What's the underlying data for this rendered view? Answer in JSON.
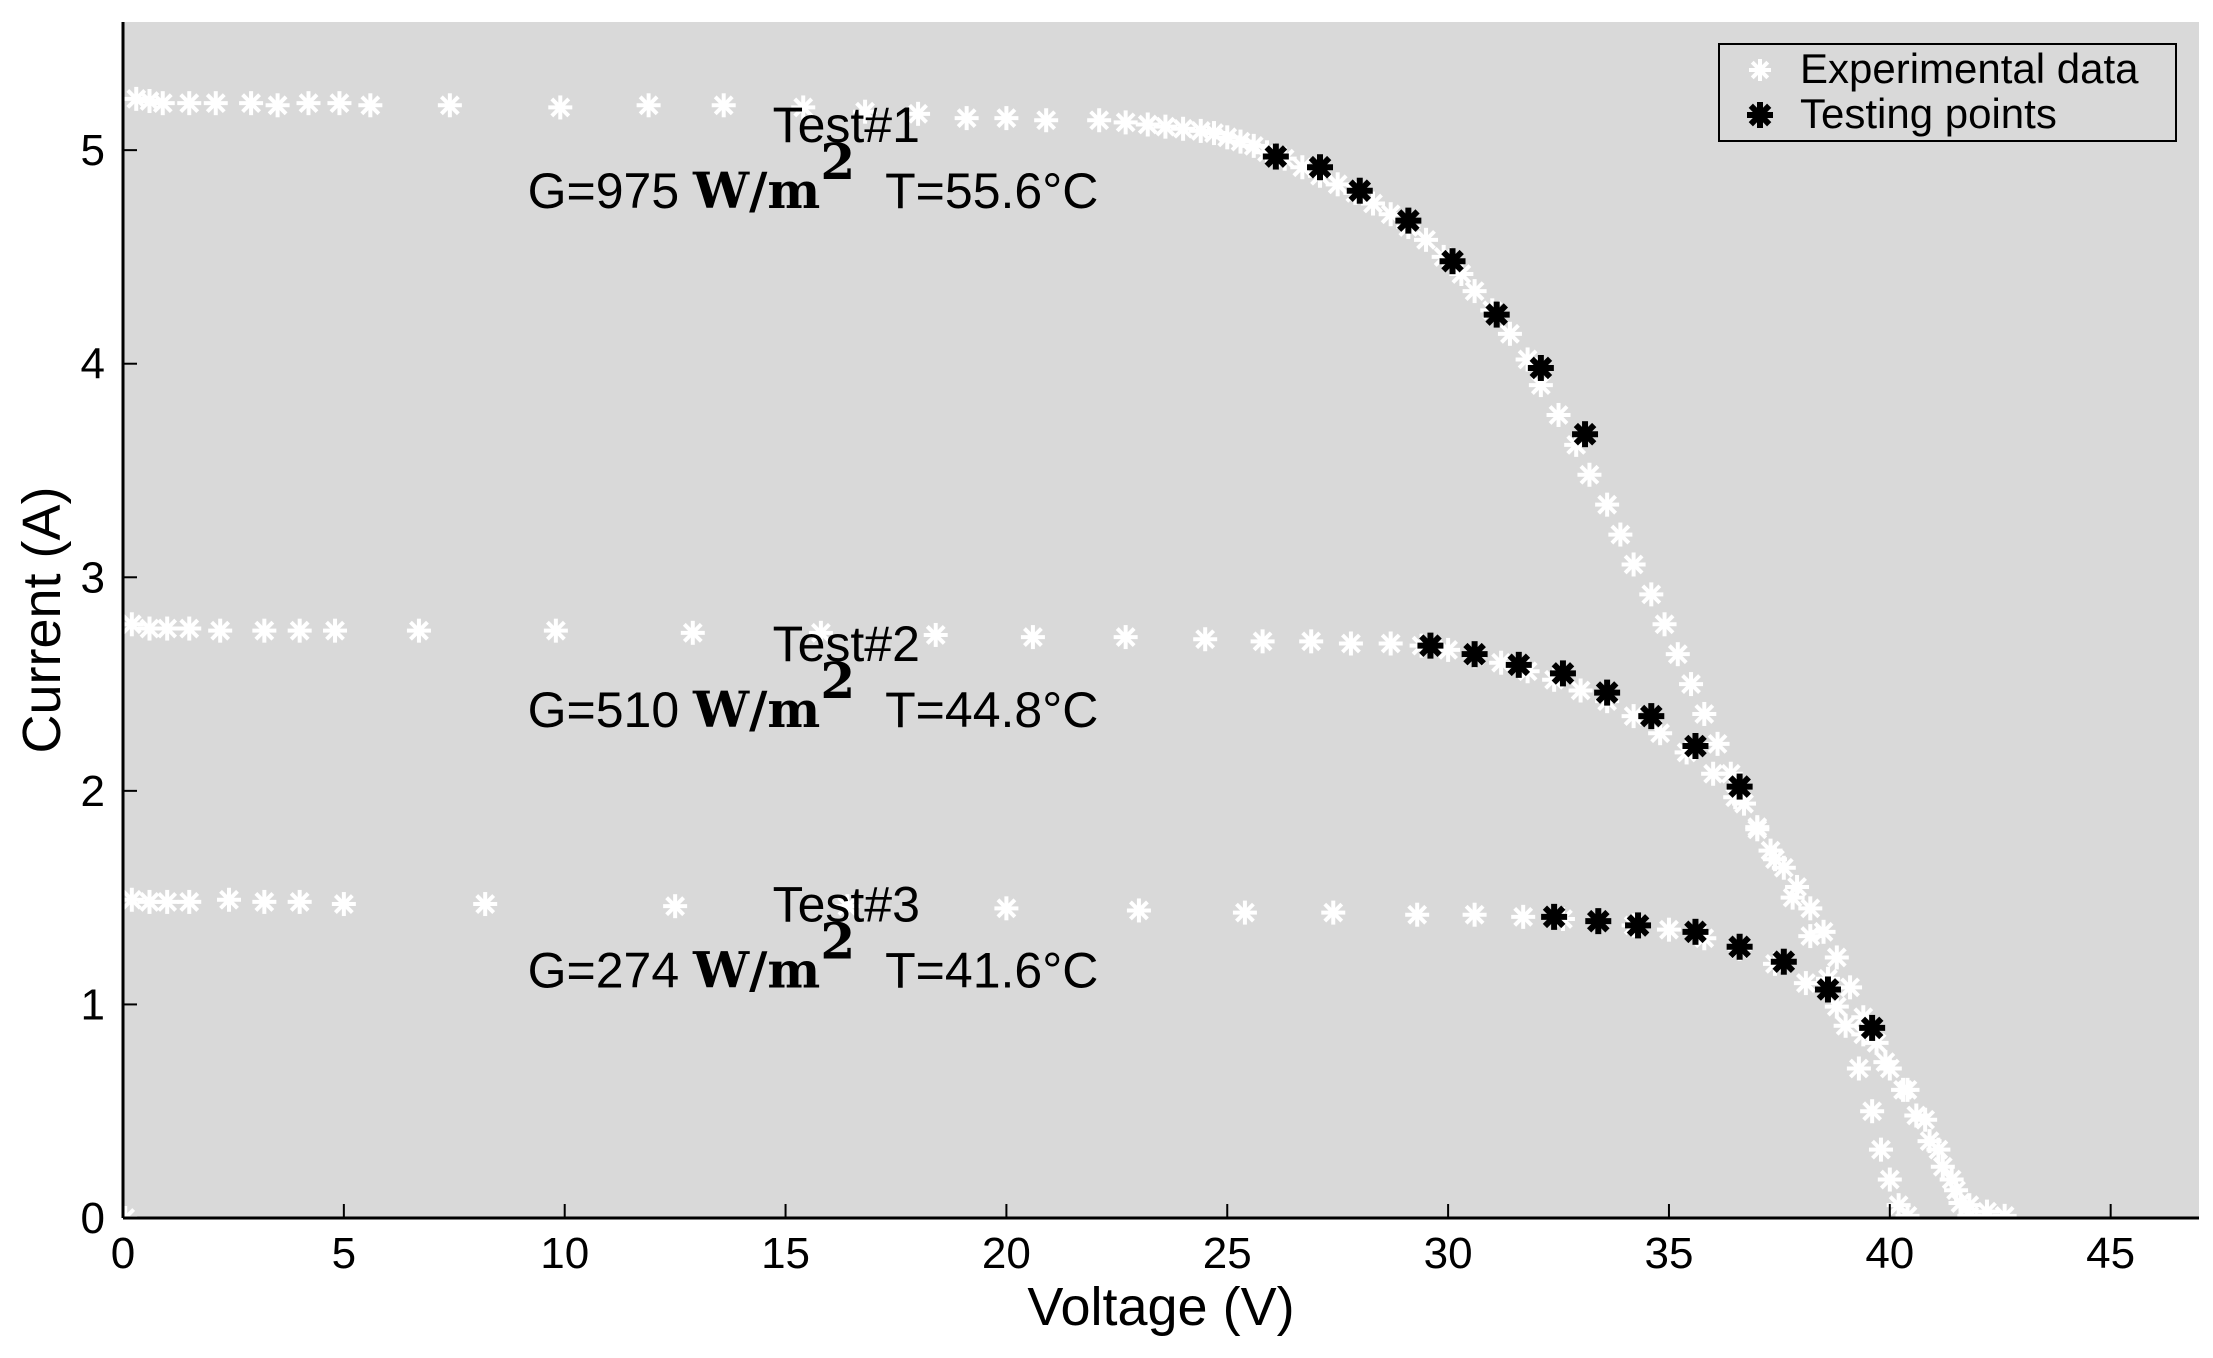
{
  "chart_data": {
    "type": "scatter",
    "title": "",
    "xlabel": "Voltage (V)",
    "ylabel": "Current (A)",
    "xlim": [
      0,
      47
    ],
    "ylim": [
      0,
      5.6
    ],
    "grid": false,
    "legend_position": "top-right",
    "background": "#d9d9d9",
    "xticks": [
      0,
      5,
      10,
      15,
      20,
      25,
      30,
      35,
      40,
      45
    ],
    "yticks": [
      0,
      1,
      2,
      3,
      4,
      5
    ],
    "series": [
      {
        "name": "Experimental data",
        "color": "#ffffff",
        "marker": "asterisk-small",
        "points": [
          [
            0.3,
            5.24
          ],
          [
            0.6,
            5.23
          ],
          [
            0.9,
            5.22
          ],
          [
            1.5,
            5.22
          ],
          [
            2.1,
            5.22
          ],
          [
            2.9,
            5.22
          ],
          [
            3.5,
            5.21
          ],
          [
            4.2,
            5.22
          ],
          [
            4.9,
            5.22
          ],
          [
            5.6,
            5.21
          ],
          [
            7.4,
            5.21
          ],
          [
            9.9,
            5.2
          ],
          [
            11.9,
            5.21
          ],
          [
            13.6,
            5.21
          ],
          [
            15.4,
            5.2
          ],
          [
            16.8,
            5.18
          ],
          [
            18.0,
            5.17
          ],
          [
            19.1,
            5.15
          ],
          [
            20.0,
            5.15
          ],
          [
            20.9,
            5.14
          ],
          [
            22.1,
            5.14
          ],
          [
            22.7,
            5.13
          ],
          [
            23.2,
            5.12
          ],
          [
            23.6,
            5.11
          ],
          [
            24.0,
            5.1
          ],
          [
            24.4,
            5.09
          ],
          [
            24.7,
            5.08
          ],
          [
            25.0,
            5.06
          ],
          [
            25.3,
            5.04
          ],
          [
            25.6,
            5.02
          ],
          [
            25.9,
            4.99
          ],
          [
            26.3,
            4.96
          ],
          [
            26.7,
            4.92
          ],
          [
            27.1,
            4.88
          ],
          [
            27.5,
            4.84
          ],
          [
            27.9,
            4.8
          ],
          [
            28.3,
            4.75
          ],
          [
            28.7,
            4.7
          ],
          [
            29.1,
            4.64
          ],
          [
            29.5,
            4.58
          ],
          [
            29.9,
            4.5
          ],
          [
            30.3,
            4.42
          ],
          [
            30.6,
            4.34
          ],
          [
            31.0,
            4.25
          ],
          [
            31.4,
            4.14
          ],
          [
            31.8,
            4.02
          ],
          [
            32.1,
            3.9
          ],
          [
            32.5,
            3.76
          ],
          [
            32.9,
            3.62
          ],
          [
            33.2,
            3.48
          ],
          [
            33.6,
            3.34
          ],
          [
            33.9,
            3.2
          ],
          [
            34.2,
            3.06
          ],
          [
            34.6,
            2.92
          ],
          [
            34.9,
            2.78
          ],
          [
            35.2,
            2.64
          ],
          [
            35.5,
            2.5
          ],
          [
            35.8,
            2.36
          ],
          [
            36.1,
            2.22
          ],
          [
            36.4,
            2.08
          ],
          [
            36.7,
            1.94
          ],
          [
            37.0,
            1.82
          ],
          [
            37.3,
            1.72
          ],
          [
            37.6,
            1.64
          ],
          [
            37.9,
            1.55
          ],
          [
            38.2,
            1.45
          ],
          [
            38.5,
            1.34
          ],
          [
            38.8,
            1.22
          ],
          [
            39.1,
            1.08
          ],
          [
            39.4,
            0.94
          ],
          [
            39.7,
            0.82
          ],
          [
            40.0,
            0.7
          ],
          [
            40.3,
            0.6
          ],
          [
            40.6,
            0.48
          ],
          [
            40.9,
            0.36
          ],
          [
            41.2,
            0.24
          ],
          [
            41.5,
            0.13
          ],
          [
            41.8,
            0.06
          ],
          [
            42.2,
            0.03
          ],
          [
            42.6,
            0.01
          ],
          [
            0.2,
            2.78
          ],
          [
            0.6,
            2.76
          ],
          [
            1.0,
            2.76
          ],
          [
            1.5,
            2.76
          ],
          [
            2.2,
            2.75
          ],
          [
            3.2,
            2.75
          ],
          [
            4.0,
            2.75
          ],
          [
            4.8,
            2.75
          ],
          [
            6.7,
            2.75
          ],
          [
            9.8,
            2.75
          ],
          [
            12.9,
            2.74
          ],
          [
            15.8,
            2.74
          ],
          [
            18.4,
            2.73
          ],
          [
            20.6,
            2.72
          ],
          [
            22.7,
            2.72
          ],
          [
            24.5,
            2.71
          ],
          [
            25.8,
            2.7
          ],
          [
            26.9,
            2.7
          ],
          [
            27.8,
            2.69
          ],
          [
            28.7,
            2.69
          ],
          [
            29.4,
            2.68
          ],
          [
            30.0,
            2.66
          ],
          [
            30.6,
            2.63
          ],
          [
            31.2,
            2.6
          ],
          [
            31.8,
            2.56
          ],
          [
            32.4,
            2.52
          ],
          [
            33.0,
            2.47
          ],
          [
            33.6,
            2.42
          ],
          [
            34.2,
            2.35
          ],
          [
            34.8,
            2.27
          ],
          [
            35.4,
            2.18
          ],
          [
            36.0,
            2.08
          ],
          [
            36.5,
            1.97
          ],
          [
            37.0,
            1.83
          ],
          [
            37.4,
            1.68
          ],
          [
            37.8,
            1.5
          ],
          [
            38.2,
            1.32
          ],
          [
            38.6,
            1.12
          ],
          [
            39.0,
            0.9
          ],
          [
            39.3,
            0.7
          ],
          [
            39.6,
            0.5
          ],
          [
            39.8,
            0.32
          ],
          [
            40.0,
            0.18
          ],
          [
            40.2,
            0.06
          ],
          [
            40.4,
            0.01
          ],
          [
            0.2,
            1.49
          ],
          [
            0.6,
            1.48
          ],
          [
            1.0,
            1.48
          ],
          [
            1.5,
            1.48
          ],
          [
            2.4,
            1.49
          ],
          [
            3.2,
            1.48
          ],
          [
            4.0,
            1.48
          ],
          [
            5.0,
            1.47
          ],
          [
            8.2,
            1.47
          ],
          [
            12.5,
            1.46
          ],
          [
            16.4,
            1.46
          ],
          [
            20.0,
            1.45
          ],
          [
            23.0,
            1.44
          ],
          [
            25.4,
            1.43
          ],
          [
            27.4,
            1.43
          ],
          [
            29.3,
            1.42
          ],
          [
            30.6,
            1.42
          ],
          [
            31.7,
            1.41
          ],
          [
            32.6,
            1.4
          ],
          [
            33.4,
            1.39
          ],
          [
            34.2,
            1.37
          ],
          [
            35.0,
            1.35
          ],
          [
            35.8,
            1.31
          ],
          [
            36.6,
            1.26
          ],
          [
            37.4,
            1.19
          ],
          [
            38.1,
            1.1
          ],
          [
            38.8,
            0.99
          ],
          [
            39.4,
            0.86
          ],
          [
            39.9,
            0.73
          ],
          [
            40.4,
            0.6
          ],
          [
            40.8,
            0.46
          ],
          [
            41.1,
            0.32
          ],
          [
            41.4,
            0.18
          ],
          [
            41.6,
            0.07
          ],
          [
            41.8,
            0.01
          ],
          [
            0.05,
            0.0
          ]
        ]
      },
      {
        "name": "Testing points",
        "color": "#000000",
        "marker": "asterisk-bold",
        "points": [
          [
            26.1,
            4.97
          ],
          [
            27.1,
            4.92
          ],
          [
            28.0,
            4.81
          ],
          [
            29.1,
            4.67
          ],
          [
            30.1,
            4.48
          ],
          [
            31.1,
            4.23
          ],
          [
            32.1,
            3.98
          ],
          [
            33.1,
            3.67
          ],
          [
            29.6,
            2.68
          ],
          [
            30.6,
            2.64
          ],
          [
            31.6,
            2.59
          ],
          [
            32.6,
            2.55
          ],
          [
            33.6,
            2.46
          ],
          [
            34.6,
            2.35
          ],
          [
            35.6,
            2.21
          ],
          [
            36.6,
            2.02
          ],
          [
            32.4,
            1.41
          ],
          [
            33.4,
            1.39
          ],
          [
            34.3,
            1.37
          ],
          [
            35.6,
            1.34
          ],
          [
            36.6,
            1.27
          ],
          [
            37.6,
            1.2
          ],
          [
            38.6,
            1.07
          ],
          [
            39.6,
            0.89
          ]
        ]
      }
    ],
    "annotations": [
      {
        "name": "test1",
        "label": "Test#1",
        "g_prefix": "G=975 ",
        "g_unit": "W/m",
        "g_exp": "2",
        "temp": "T=55.6°C",
        "x": 9.5,
        "y": 5.0
      },
      {
        "name": "test2",
        "label": "Test#2",
        "g_prefix": "G=510 ",
        "g_unit": "W/m",
        "g_exp": "2",
        "temp": "T=44.8°C",
        "x": 9.5,
        "y": 2.57
      },
      {
        "name": "test3",
        "label": "Test#3",
        "g_prefix": "G=274 ",
        "g_unit": "W/m",
        "g_exp": "2",
        "temp": "T=41.6°C",
        "x": 9.5,
        "y": 1.35
      }
    ]
  }
}
